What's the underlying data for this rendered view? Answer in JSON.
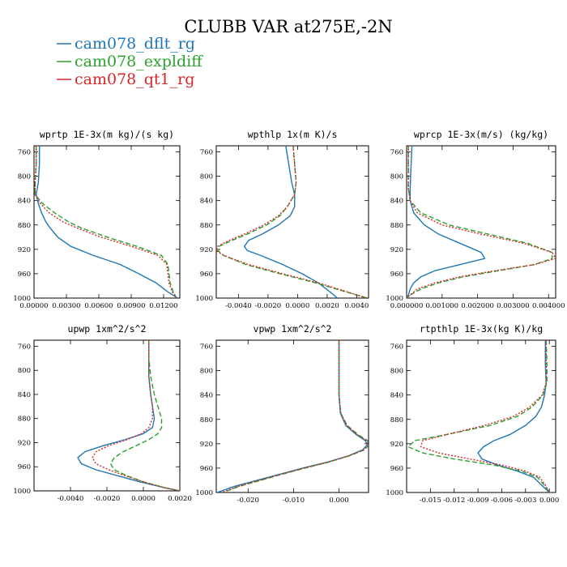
{
  "figure": {
    "title": "CLUBB VAR at275E,-2N"
  },
  "legend": [
    {
      "label": "cam078_dflt_rg",
      "color": "#1f77b4",
      "dash": "solid"
    },
    {
      "label": "cam078_expldiff",
      "color": "#2ca02c",
      "dash": "dashed"
    },
    {
      "label": "cam078_qt1_rg",
      "color": "#d62728",
      "dash": "dotted"
    }
  ],
  "chart_data": [
    {
      "type": "line",
      "title": "wprtp  1E-3x(m kg)/(s kg)",
      "xlim": [
        0.0,
        0.0135
      ],
      "ylim": [
        1000,
        750
      ],
      "xticks": [
        0.0,
        0.003,
        0.006,
        0.009,
        0.012
      ],
      "xtick_labels": [
        "0.00000",
        "0.00300",
        "0.00600",
        "0.00900",
        "0.01200"
      ],
      "yticks": [
        760,
        800,
        840,
        880,
        920,
        960,
        1000
      ],
      "y": [
        750,
        780,
        810,
        830,
        845,
        860,
        875,
        885,
        900,
        915,
        930,
        945,
        960,
        975,
        990,
        1000
      ],
      "series": [
        {
          "name": "cam078_dflt_rg",
          "values": [
            0.0005,
            0.0005,
            0.0004,
            0.0002,
            0.0004,
            0.0007,
            0.0011,
            0.0015,
            0.0022,
            0.0034,
            0.0055,
            0.008,
            0.0097,
            0.0113,
            0.0124,
            0.0133
          ]
        },
        {
          "name": "cam078_expldiff",
          "values": [
            0.0002,
            0.0002,
            0.0001,
            0.0001,
            0.0008,
            0.0019,
            0.0032,
            0.0044,
            0.0068,
            0.0095,
            0.0118,
            0.0124,
            0.0125,
            0.0126,
            0.0129,
            0.0132
          ]
        },
        {
          "name": "cam078_qt1_rg",
          "values": [
            0.0002,
            0.0002,
            0.0001,
            0.0001,
            0.0006,
            0.0014,
            0.0027,
            0.004,
            0.0062,
            0.009,
            0.0115,
            0.0123,
            0.0124,
            0.0125,
            0.0128,
            0.0132
          ]
        }
      ]
    },
    {
      "type": "line",
      "title": "wpthlp  1x(m K)/s",
      "xlim": [
        -0.0055,
        0.0048
      ],
      "ylim": [
        1000,
        750
      ],
      "xticks": [
        -0.004,
        -0.002,
        0.0,
        0.002,
        0.004
      ],
      "xtick_labels": [
        "-0.0040",
        "-0.0020",
        "0.0000",
        "0.0020",
        "0.0040"
      ],
      "yticks": [
        760,
        800,
        840,
        880,
        920,
        960,
        1000
      ],
      "y": [
        750,
        780,
        810,
        830,
        850,
        865,
        880,
        895,
        905,
        915,
        922,
        930,
        945,
        960,
        975,
        990,
        1000
      ],
      "series": [
        {
          "name": "cam078_dflt_rg",
          "values": [
            -0.0008,
            -0.0006,
            -0.0004,
            -0.0002,
            -0.0002,
            -0.0005,
            -0.0013,
            -0.0024,
            -0.0033,
            -0.0036,
            -0.0034,
            -0.0025,
            -0.001,
            0.0003,
            0.0014,
            0.0022,
            0.0027
          ]
        },
        {
          "name": "cam078_expldiff",
          "values": [
            -0.0003,
            -0.0002,
            -0.0001,
            -0.0002,
            -0.0007,
            -0.0012,
            -0.0021,
            -0.0034,
            -0.0044,
            -0.0053,
            -0.0054,
            -0.005,
            -0.0035,
            -0.0012,
            0.0012,
            0.0033,
            0.0047
          ]
        },
        {
          "name": "cam078_qt1_rg",
          "values": [
            -0.0003,
            -0.0002,
            -0.0001,
            -0.0002,
            -0.0007,
            -0.0013,
            -0.0023,
            -0.0036,
            -0.0046,
            -0.0054,
            -0.0055,
            -0.005,
            -0.0033,
            -0.001,
            0.0014,
            0.0034,
            0.0047
          ]
        }
      ]
    },
    {
      "type": "line",
      "title": "wprcp  1E-3x(m/s) (kg/kg)",
      "xlim": [
        0.0,
        0.0042
      ],
      "ylim": [
        1000,
        750
      ],
      "xticks": [
        0.0,
        0.001,
        0.002,
        0.003,
        0.004
      ],
      "xtick_labels": [
        "0.000000",
        "0.001000",
        "0.002000",
        "0.003000",
        "0.004000"
      ],
      "yticks": [
        760,
        800,
        840,
        880,
        920,
        960,
        1000
      ],
      "y": [
        750,
        790,
        820,
        840,
        860,
        880,
        895,
        910,
        925,
        935,
        945,
        955,
        965,
        975,
        985,
        995,
        1000
      ],
      "series": [
        {
          "name": "cam078_dflt_rg",
          "values": [
            0.00015,
            0.00012,
            0.0001,
            0.0001,
            0.0002,
            0.0005,
            0.0009,
            0.0015,
            0.0021,
            0.0022,
            0.0015,
            0.0008,
            0.0004,
            0.0002,
            0.0001,
            5e-05,
            0.0
          ]
        },
        {
          "name": "cam078_expldiff",
          "values": [
            5e-05,
            5e-05,
            5e-05,
            0.0001,
            0.0004,
            0.0012,
            0.0023,
            0.0034,
            0.0041,
            0.0041,
            0.0036,
            0.0026,
            0.0016,
            0.0009,
            0.0004,
            0.0001,
            0.0
          ]
        },
        {
          "name": "cam078_qt1_rg",
          "values": [
            5e-05,
            5e-05,
            5e-05,
            0.0001,
            0.0003,
            0.001,
            0.0021,
            0.0033,
            0.0041,
            0.0042,
            0.0036,
            0.0025,
            0.0015,
            0.0008,
            0.0003,
            0.0001,
            0.0
          ]
        }
      ]
    },
    {
      "type": "line",
      "title": "upwp  1xm^2/s^2",
      "xlim": [
        -0.006,
        0.002
      ],
      "ylim": [
        1000,
        750
      ],
      "xticks": [
        -0.004,
        -0.002,
        0.0,
        0.002
      ],
      "xtick_labels": [
        "-0.0040",
        "-0.0020",
        "0.0000",
        "0.0020"
      ],
      "yticks": [
        760,
        800,
        840,
        880,
        920,
        960,
        1000
      ],
      "y": [
        750,
        780,
        810,
        840,
        860,
        880,
        895,
        905,
        915,
        925,
        935,
        945,
        955,
        965,
        975,
        985,
        995,
        1000
      ],
      "series": [
        {
          "name": "cam078_dflt_rg",
          "values": [
            0.0003,
            0.0003,
            0.0003,
            0.0004,
            0.0005,
            0.0006,
            0.0005,
            0.0,
            -0.001,
            -0.0022,
            -0.0032,
            -0.0036,
            -0.0034,
            -0.0026,
            -0.0014,
            -0.0002,
            0.0012,
            0.002
          ]
        },
        {
          "name": "cam078_expldiff",
          "values": [
            0.0003,
            0.0003,
            0.0004,
            0.0006,
            0.0008,
            0.001,
            0.001,
            0.0008,
            0.0003,
            -0.0004,
            -0.0011,
            -0.0016,
            -0.0018,
            -0.0016,
            -0.0009,
            0.0,
            0.0012,
            0.002
          ]
        },
        {
          "name": "cam078_qt1_rg",
          "values": [
            0.0003,
            0.0003,
            0.0003,
            0.0004,
            0.0005,
            0.0005,
            0.0003,
            -0.0001,
            -0.0009,
            -0.0019,
            -0.0026,
            -0.0028,
            -0.0026,
            -0.0019,
            -0.001,
            0.0,
            0.0012,
            0.002
          ]
        }
      ]
    },
    {
      "type": "line",
      "title": "vpwp  1xm^2/s^2",
      "xlim": [
        -0.027,
        0.0065
      ],
      "ylim": [
        1000,
        750
      ],
      "xticks": [
        -0.02,
        -0.01,
        0.0
      ],
      "xtick_labels": [
        "-0.020",
        "-0.010",
        "0.000"
      ],
      "yticks": [
        760,
        800,
        840,
        880,
        920,
        960,
        1000
      ],
      "y": [
        750,
        800,
        840,
        870,
        890,
        905,
        915,
        922,
        930,
        940,
        950,
        960,
        970,
        980,
        990,
        1000
      ],
      "series": [
        {
          "name": "cam078_dflt_rg",
          "values": [
            0.0,
            0.0,
            0.0,
            0.0003,
            0.0015,
            0.0038,
            0.0058,
            0.0062,
            0.0052,
            0.002,
            -0.0025,
            -0.008,
            -0.013,
            -0.018,
            -0.023,
            -0.0268
          ]
        },
        {
          "name": "cam078_expldiff",
          "values": [
            0.0,
            0.0,
            0.0,
            0.0004,
            0.0018,
            0.0042,
            0.0063,
            0.0066,
            0.0056,
            0.0022,
            -0.0022,
            -0.0075,
            -0.0125,
            -0.0172,
            -0.022,
            -0.0255
          ]
        },
        {
          "name": "cam078_qt1_rg",
          "values": [
            0.0,
            0.0,
            0.0,
            0.0004,
            0.0017,
            0.004,
            0.0061,
            0.0065,
            0.0055,
            0.0021,
            -0.0023,
            -0.0077,
            -0.0127,
            -0.0175,
            -0.0222,
            -0.0258
          ]
        }
      ]
    },
    {
      "type": "line",
      "title": "rtpthlp  1E-3x(kg K)/kg",
      "xlim": [
        -0.018,
        0.0008
      ],
      "ylim": [
        1000,
        750
      ],
      "xticks": [
        -0.015,
        -0.012,
        -0.009,
        -0.006,
        -0.003,
        0.0
      ],
      "xtick_labels": [
        "-0.015",
        "-0.012",
        "-0.009",
        "-0.006",
        "-0.003",
        "0.000"
      ],
      "yticks": [
        760,
        800,
        840,
        880,
        920,
        960,
        1000
      ],
      "y": [
        750,
        790,
        820,
        840,
        860,
        875,
        890,
        905,
        915,
        925,
        935,
        945,
        955,
        965,
        975,
        990,
        1000
      ],
      "series": [
        {
          "name": "cam078_dflt_rg",
          "values": [
            -0.0005,
            -0.0005,
            -0.0004,
            -0.0006,
            -0.001,
            -0.0017,
            -0.003,
            -0.005,
            -0.007,
            -0.0083,
            -0.009,
            -0.0085,
            -0.0065,
            -0.004,
            -0.002,
            -0.0008,
            0.0
          ]
        },
        {
          "name": "cam078_expldiff",
          "values": [
            -0.0004,
            -0.0003,
            -0.0003,
            -0.0008,
            -0.0022,
            -0.004,
            -0.0075,
            -0.013,
            -0.017,
            -0.0178,
            -0.016,
            -0.012,
            -0.007,
            -0.0035,
            -0.0015,
            -0.0005,
            0.0
          ]
        },
        {
          "name": "cam078_qt1_rg",
          "values": [
            -0.0004,
            -0.0004,
            -0.0004,
            -0.0009,
            -0.0025,
            -0.0045,
            -0.0082,
            -0.013,
            -0.016,
            -0.0162,
            -0.014,
            -0.01,
            -0.006,
            -0.003,
            -0.0012,
            -0.0004,
            0.0
          ]
        }
      ]
    }
  ]
}
